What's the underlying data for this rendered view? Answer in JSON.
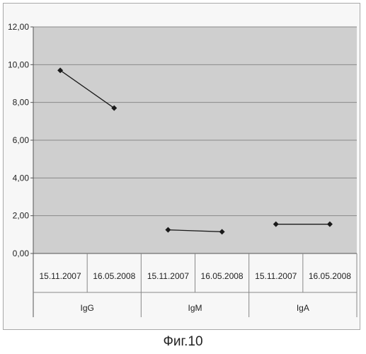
{
  "figure_caption": "Фиг.10",
  "chart_data": {
    "type": "line",
    "ylim": [
      0,
      12
    ],
    "y_ticks": [
      "0,00",
      "2,00",
      "4,00",
      "6,00",
      "8,00",
      "10,00",
      "12,00"
    ],
    "y_tick_values": [
      0,
      2,
      4,
      6,
      8,
      10,
      12
    ],
    "grid": true,
    "groups": [
      {
        "name": "IgG",
        "categories": [
          "15.11.2007",
          "16.05.2008"
        ],
        "values": [
          9.7,
          7.7
        ]
      },
      {
        "name": "IgM",
        "categories": [
          "15.11.2007",
          "16.05.2008"
        ],
        "values": [
          1.25,
          1.15
        ]
      },
      {
        "name": "IgA",
        "categories": [
          "15.11.2007",
          "16.05.2008"
        ],
        "values": [
          1.55,
          1.55
        ]
      }
    ],
    "colors": {
      "plot_bg": "#cfcfcf",
      "grid": "#8a8a8a",
      "line": "#1a1a1a",
      "marker": "#1a1a1a"
    }
  }
}
